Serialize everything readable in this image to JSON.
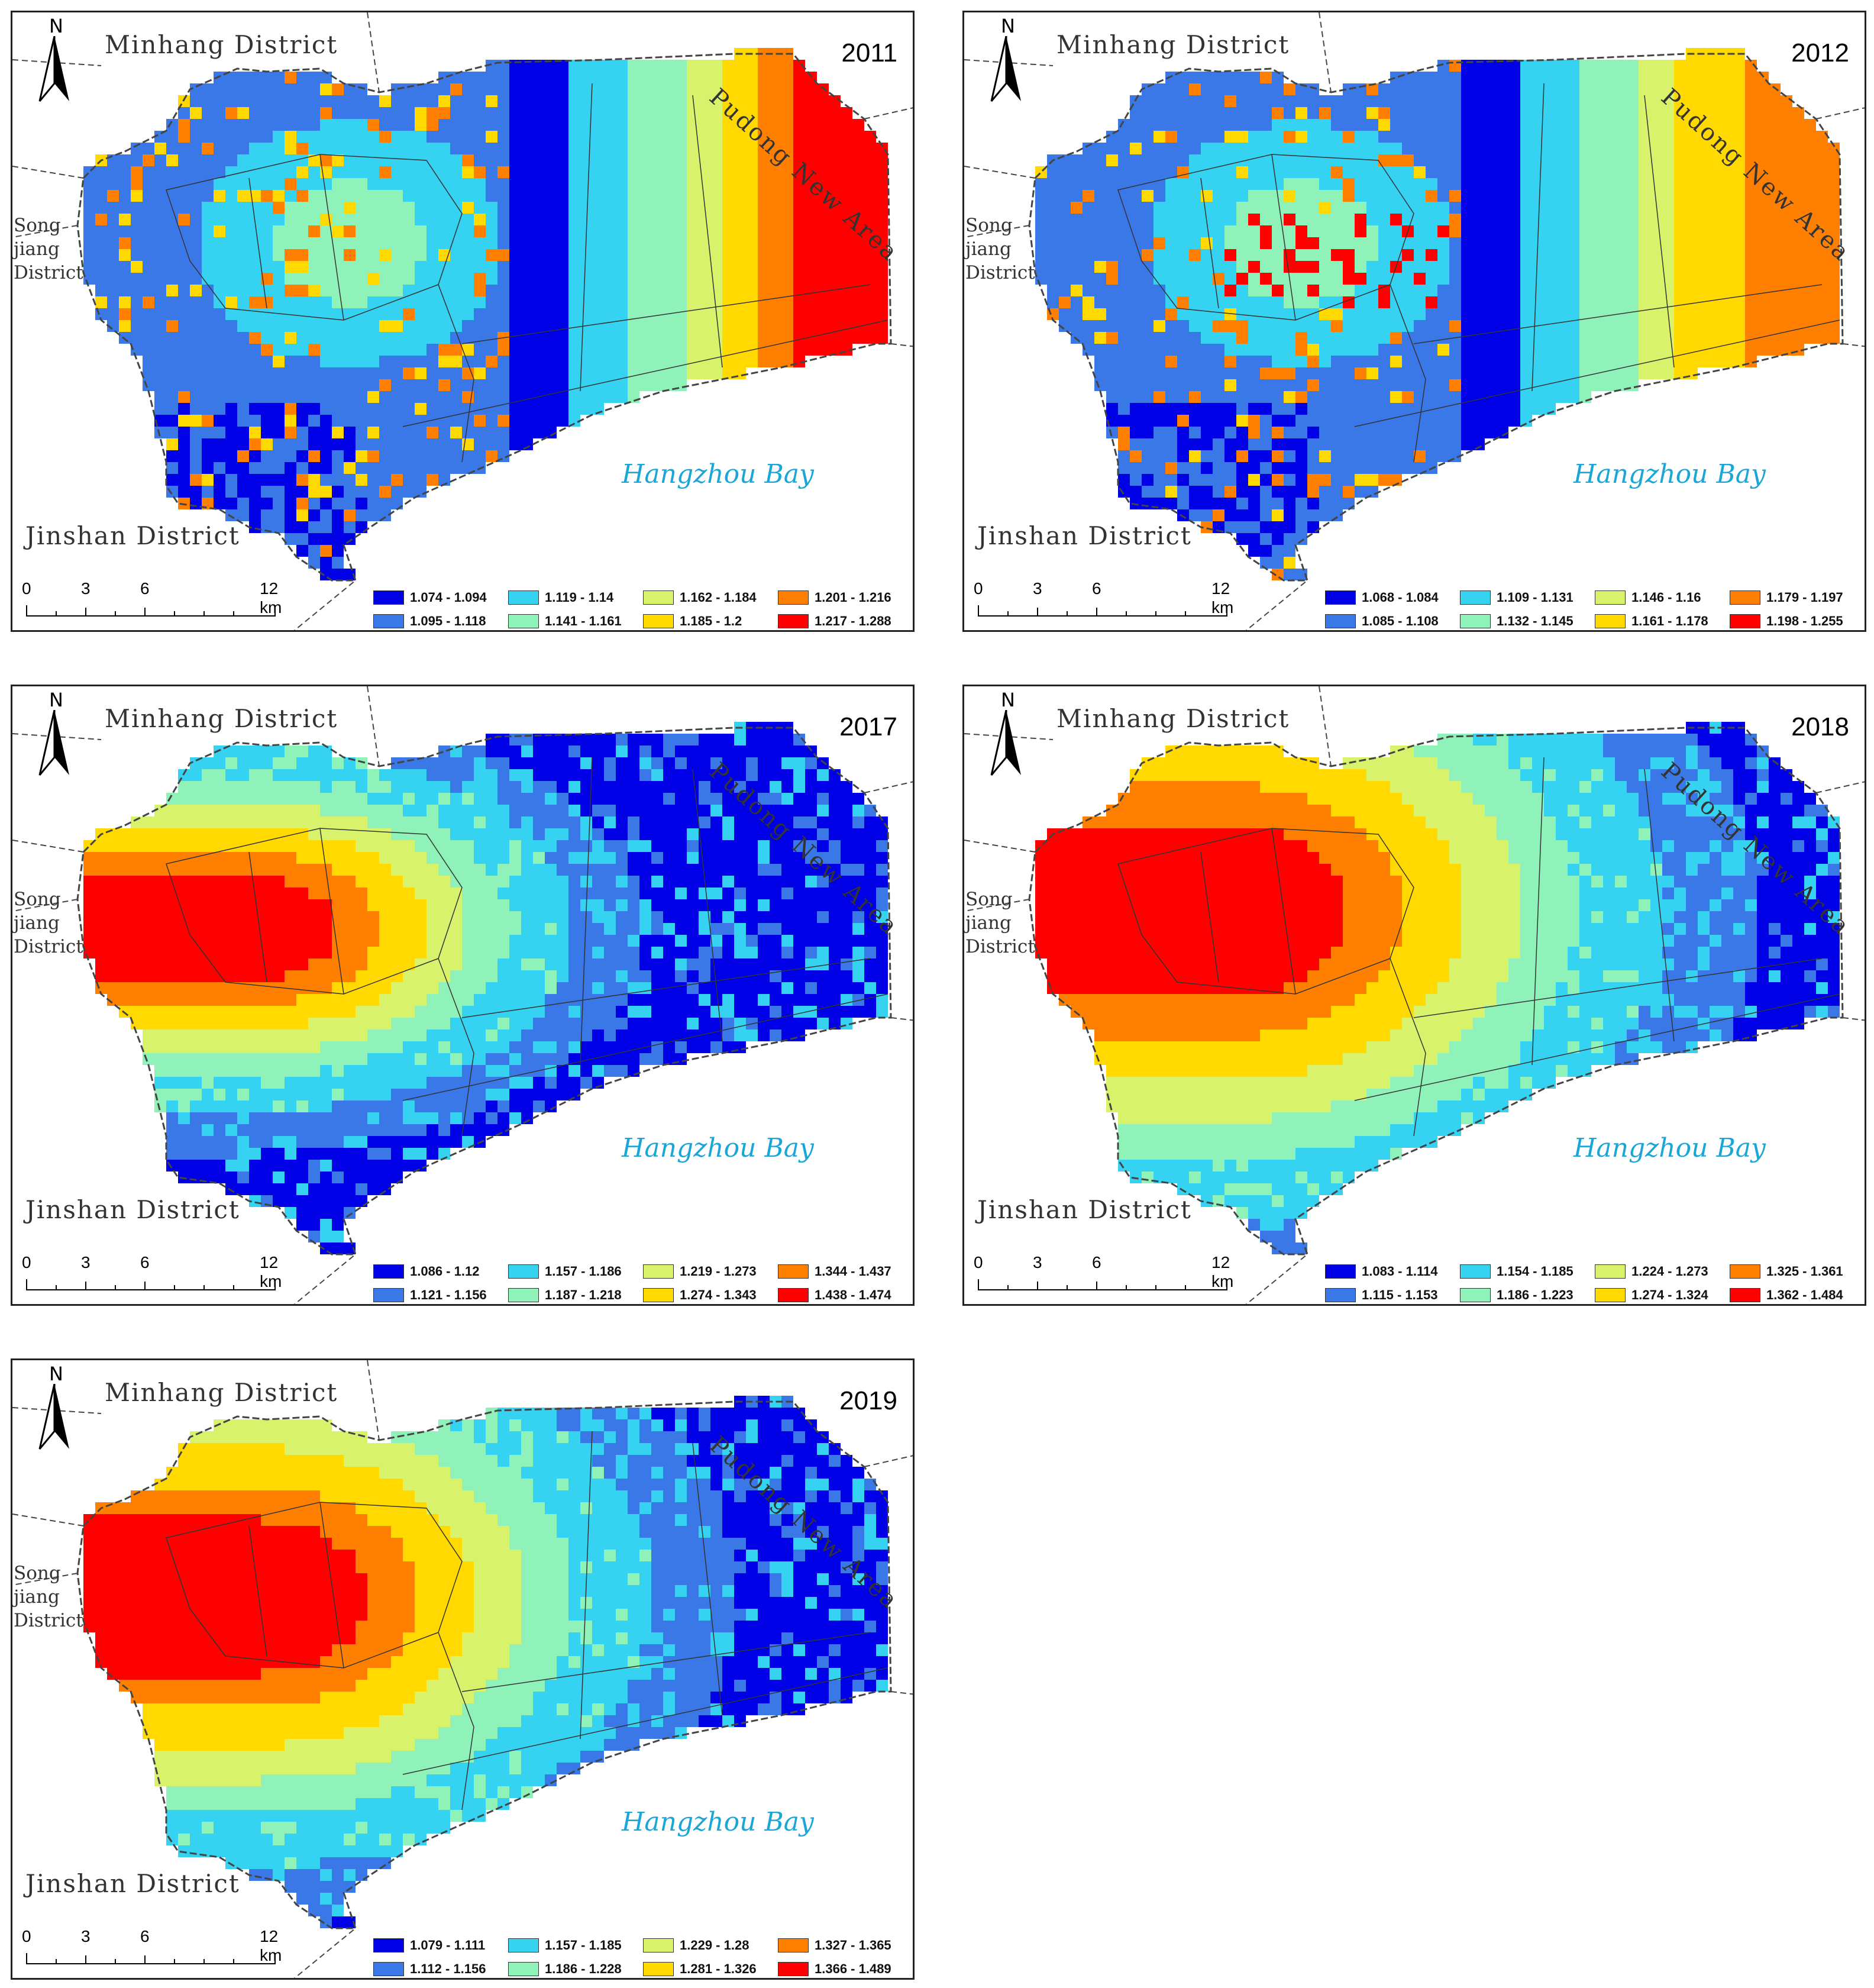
{
  "labels": {
    "minhang": "Minhang District",
    "jinshan": "Jinshan District",
    "songjiang": [
      "Song",
      "jiang",
      "District"
    ],
    "pudong": "Pudong New Area",
    "bay": "Hangzhou Bay",
    "north": "N",
    "scale": [
      "0",
      "3",
      "6",
      "12 km"
    ]
  },
  "colors": [
    "#0000e6",
    "#3a78e8",
    "#35d2f2",
    "#8ff2b8",
    "#d9f26c",
    "#ffd900",
    "#ff8000",
    "#ff0000"
  ],
  "panels": [
    {
      "year": "2011",
      "legend": [
        "1.074 - 1.094",
        "1.095 - 1.118",
        "1.119 - 1.14",
        "1.141 - 1.161",
        "1.162 - 1.184",
        "1.185 - 1.2",
        "1.201 - 1.216",
        "1.217 - 1.288"
      ],
      "pattern": "bands_east"
    },
    {
      "year": "2012",
      "legend": [
        "1.068 - 1.084",
        "1.085 - 1.108",
        "1.109 - 1.131",
        "1.132 - 1.145",
        "1.146 - 1.16",
        "1.161 - 1.178",
        "1.179 - 1.197",
        "1.198 - 1.255"
      ],
      "pattern": "bands_east_b"
    },
    {
      "year": "2017",
      "legend": [
        "1.086 - 1.12",
        "1.121 - 1.156",
        "1.157 - 1.186",
        "1.187 - 1.218",
        "1.219 - 1.273",
        "1.274 - 1.343",
        "1.344 - 1.437",
        "1.438 - 1.474"
      ],
      "pattern": "west_hot_narrow"
    },
    {
      "year": "2018",
      "legend": [
        "1.083 - 1.114",
        "1.115 - 1.153",
        "1.154 - 1.185",
        "1.186 - 1.223",
        "1.224 - 1.273",
        "1.274 - 1.324",
        "1.325 - 1.361",
        "1.362 - 1.484"
      ],
      "pattern": "west_hot_wide"
    },
    {
      "year": "2019",
      "legend": [
        "1.079 - 1.111",
        "1.112 - 1.156",
        "1.157 - 1.185",
        "1.186 - 1.228",
        "1.229 - 1.28",
        "1.281 - 1.326",
        "1.327 - 1.365",
        "1.366 - 1.489"
      ],
      "pattern": "west_hot_mid"
    }
  ]
}
